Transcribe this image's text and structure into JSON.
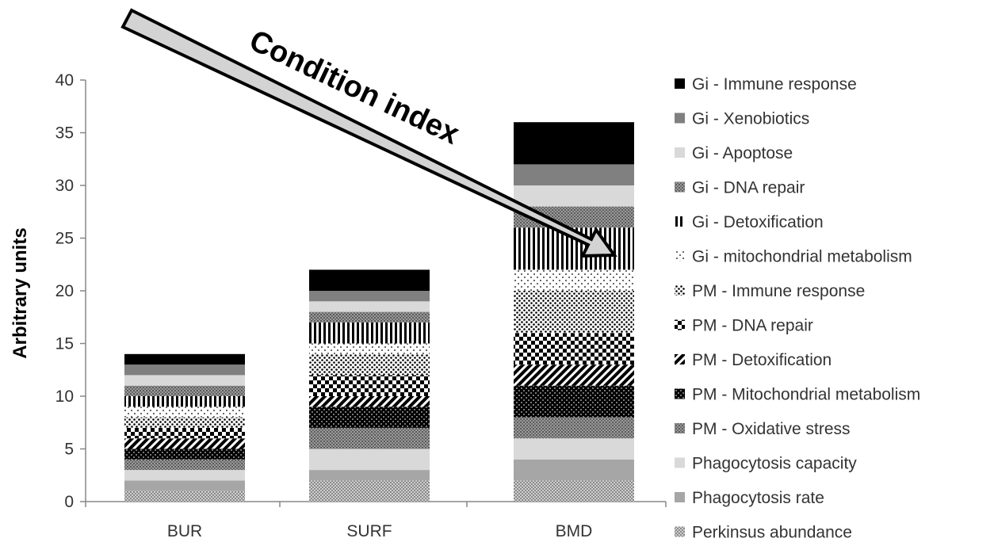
{
  "chart_data": {
    "type": "bar",
    "stacked": true,
    "title": "",
    "xlabel": "",
    "ylabel": "Arbitrary units",
    "ylim": [
      0,
      40
    ],
    "yticks": [
      0,
      5,
      10,
      15,
      20,
      25,
      30,
      35,
      40
    ],
    "categories": [
      "BUR",
      "SURF",
      "BMD"
    ],
    "annotation": "Condition index",
    "legend_position": "right",
    "grid": false,
    "series": [
      {
        "name": "Perkinsus abundance",
        "values": [
          1,
          2,
          2
        ],
        "pattern": "fine-dots-dark",
        "color": "#b5b5b5"
      },
      {
        "name": "Phagocytosis rate",
        "values": [
          1,
          1,
          2
        ],
        "pattern": "solid",
        "color": "#a6a6a6"
      },
      {
        "name": "Phagocytosis capacity",
        "values": [
          1,
          2,
          2
        ],
        "pattern": "solid",
        "color": "#d9d9d9"
      },
      {
        "name": "PM - Oxidative stress",
        "values": [
          1,
          2,
          2
        ],
        "pattern": "mottled",
        "color": "#808080"
      },
      {
        "name": "PM - Mitochondrial metabolism",
        "values": [
          1,
          2,
          3
        ],
        "pattern": "dark-checker",
        "color": "#1a1a1a"
      },
      {
        "name": "PM - Detoxification",
        "values": [
          1,
          1,
          2
        ],
        "pattern": "diagonal",
        "color": "#000000"
      },
      {
        "name": "PM - DNA repair",
        "values": [
          1,
          2,
          3
        ],
        "pattern": "checker",
        "color": "#000000"
      },
      {
        "name": "PM - Immune response",
        "values": [
          1,
          2,
          4
        ],
        "pattern": "dots",
        "color": "#000000"
      },
      {
        "name": "Gi - mitochondrial metabolism",
        "values": [
          1,
          1,
          2
        ],
        "pattern": "sparse-dots",
        "color": "#000000"
      },
      {
        "name": "Gi - Detoxification",
        "values": [
          1,
          2,
          4
        ],
        "pattern": "vertical",
        "color": "#000000"
      },
      {
        "name": "Gi - DNA repair",
        "values": [
          1,
          1,
          2
        ],
        "pattern": "mottled",
        "color": "#7f7f7f"
      },
      {
        "name": "Gi - Apoptose",
        "values": [
          1,
          1,
          2
        ],
        "pattern": "solid",
        "color": "#d9d9d9"
      },
      {
        "name": "Gi - Xenobiotics",
        "values": [
          1,
          1,
          2
        ],
        "pattern": "solid",
        "color": "#808080"
      },
      {
        "name": "Gi - Immune response",
        "values": [
          1,
          2,
          4
        ],
        "pattern": "solid",
        "color": "#000000"
      }
    ]
  }
}
